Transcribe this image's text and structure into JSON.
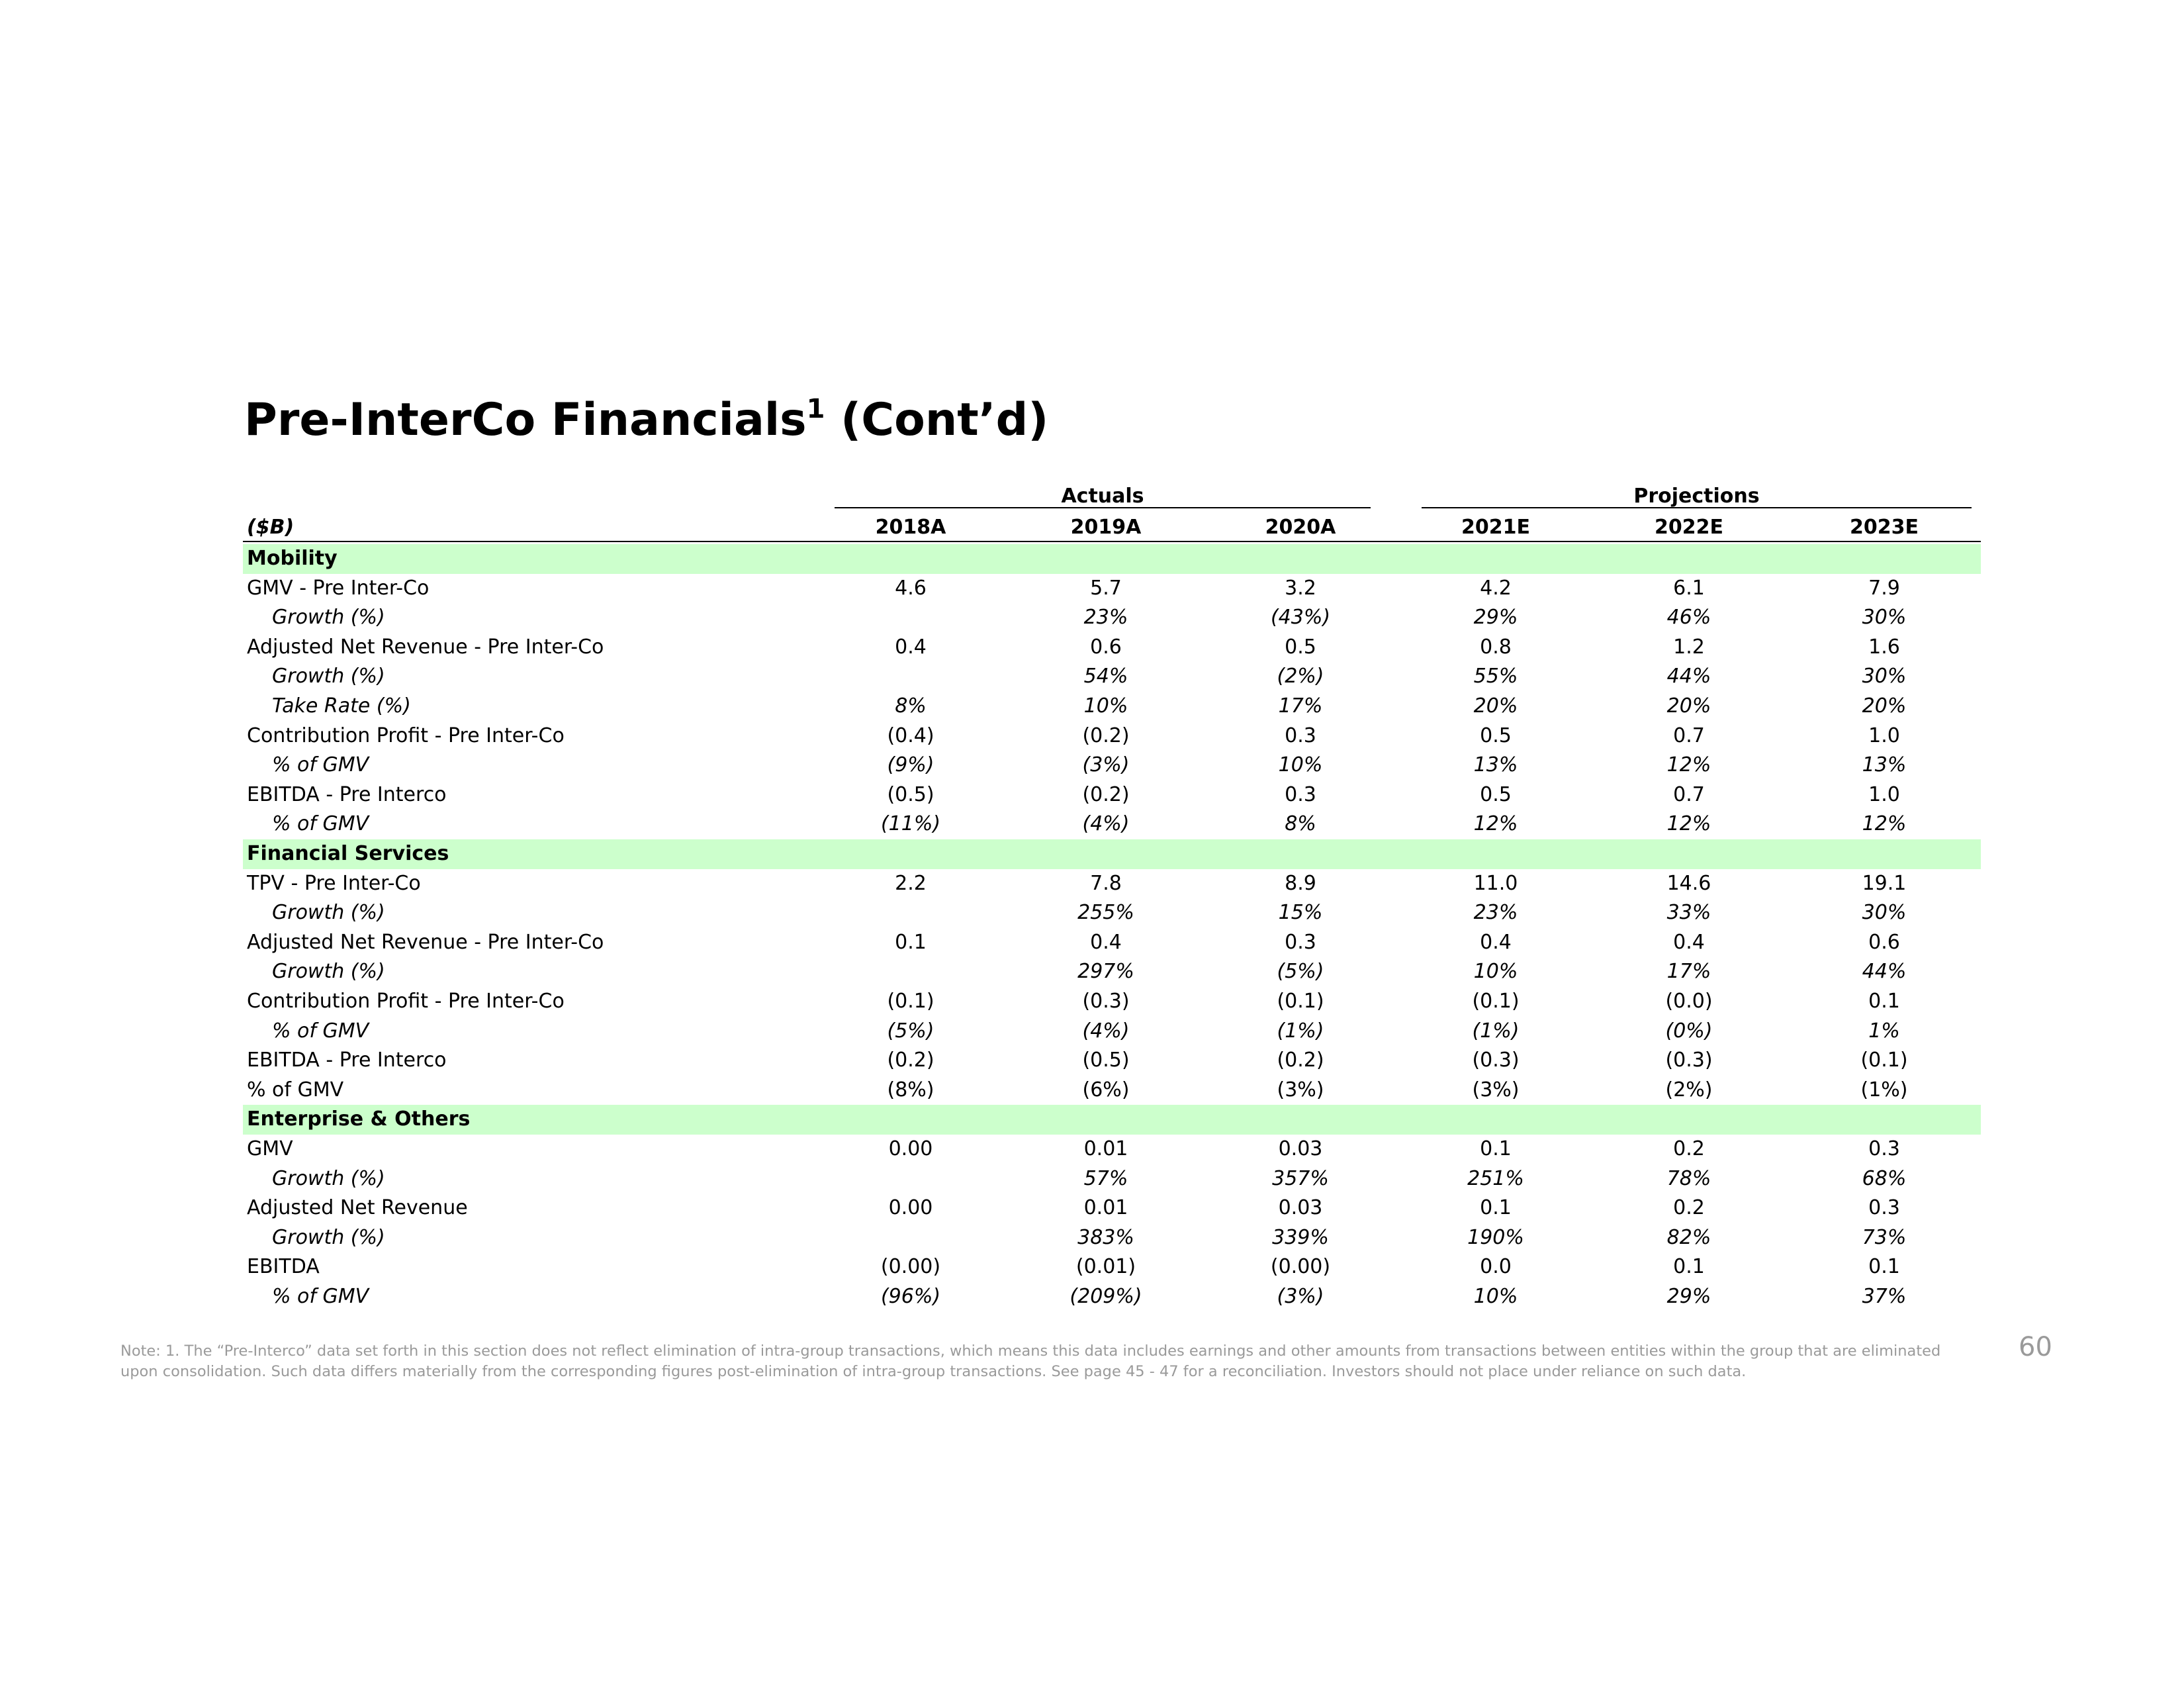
{
  "title": {
    "text": "Pre-InterCo Financials",
    "superscript": "1",
    "suffix": "(Cont’d)"
  },
  "table": {
    "unit": "($B)",
    "groups": [
      {
        "label": "Actuals",
        "columns": [
          "2018A",
          "2019A",
          "2020A"
        ]
      },
      {
        "label": "Projections",
        "columns": [
          "2021E",
          "2022E",
          "2023E"
        ]
      }
    ],
    "sections": [
      {
        "name": "Mobility",
        "rows": [
          [
            "GMV - Pre Inter-Co",
            "4.6",
            "5.7",
            "3.2",
            "4.2",
            "6.1",
            "7.9"
          ],
          [
            "Growth (%)",
            null,
            "23%",
            "(43%)",
            "29%",
            "46%",
            "30%"
          ],
          [
            "Adjusted Net Revenue - Pre Inter-Co",
            "0.4",
            "0.6",
            "0.5",
            "0.8",
            "1.2",
            "1.6"
          ],
          [
            "Growth (%)",
            null,
            "54%",
            "(2%)",
            "55%",
            "44%",
            "30%"
          ],
          [
            "Take Rate (%)",
            "8%",
            "10%",
            "17%",
            "20%",
            "20%",
            "20%"
          ],
          [
            "Contribution Profit - Pre Inter-Co",
            "(0.4)",
            "(0.2)",
            "0.3",
            "0.5",
            "0.7",
            "1.0"
          ],
          [
            "% of GMV",
            "(9%)",
            "(3%)",
            "10%",
            "13%",
            "12%",
            "13%"
          ],
          [
            "EBITDA - Pre Interco",
            "(0.5)",
            "(0.2)",
            "0.3",
            "0.5",
            "0.7",
            "1.0"
          ],
          [
            "% of GMV",
            "(11%)",
            "(4%)",
            "8%",
            "12%",
            "12%",
            "12%"
          ]
        ]
      },
      {
        "name": "Financial Services",
        "rows": [
          [
            "TPV - Pre Inter-Co",
            "2.2",
            "7.8",
            "8.9",
            "11.0",
            "14.6",
            "19.1"
          ],
          [
            "Growth (%)",
            null,
            "255%",
            "15%",
            "23%",
            "33%",
            "30%"
          ],
          [
            "Adjusted Net Revenue - Pre Inter-Co",
            "0.1",
            "0.4",
            "0.3",
            "0.4",
            "0.4",
            "0.6"
          ],
          [
            "Growth (%)",
            null,
            "297%",
            "(5%)",
            "10%",
            "17%",
            "44%"
          ],
          [
            "Contribution Profit - Pre Inter-Co",
            "(0.1)",
            "(0.3)",
            "(0.1)",
            "(0.1)",
            "(0.0)",
            "0.1"
          ],
          [
            "% of GMV",
            "(5%)",
            "(4%)",
            "(1%)",
            "(1%)",
            "(0%)",
            "1%"
          ],
          [
            "EBITDA - Pre Interco",
            "(0.2)",
            "(0.5)",
            "(0.2)",
            "(0.3)",
            "(0.3)",
            "(0.1)"
          ],
          [
            "% of GMV",
            "(8%)",
            "(6%)",
            "(3%)",
            "(3%)",
            "(2%)",
            "(1%)"
          ]
        ]
      },
      {
        "name": "Enterprise & Others",
        "rows": [
          [
            "GMV",
            "0.00",
            "0.01",
            "0.03",
            "0.1",
            "0.2",
            "0.3"
          ],
          [
            "Growth (%)",
            null,
            "57%",
            "357%",
            "251%",
            "78%",
            "68%"
          ],
          [
            "Adjusted Net Revenue",
            "0.00",
            "0.01",
            "0.03",
            "0.1",
            "0.2",
            "0.3"
          ],
          [
            "Growth (%)",
            null,
            "383%",
            "339%",
            "190%",
            "82%",
            "73%"
          ],
          [
            "EBITDA",
            "(0.00)",
            "(0.01)",
            "(0.00)",
            "0.0",
            "0.1",
            "0.1"
          ],
          [
            "% of GMV",
            "(96%)",
            "(209%)",
            "(3%)",
            "10%",
            "29%",
            "37%"
          ]
        ]
      }
    ]
  },
  "note": "Note: 1. The “Pre-Interco” data set forth in this section does not reflect elimination of intra-group transactions, which means this data includes earnings and other amounts from transactions between entities within the group that are eliminated upon consolidation. Such data differs materially from the corresponding figures post-elimination of intra-group transactions. See page 45 - 47 for a reconciliation. Investors should not place under reliance on such data.",
  "page_number": "60"
}
